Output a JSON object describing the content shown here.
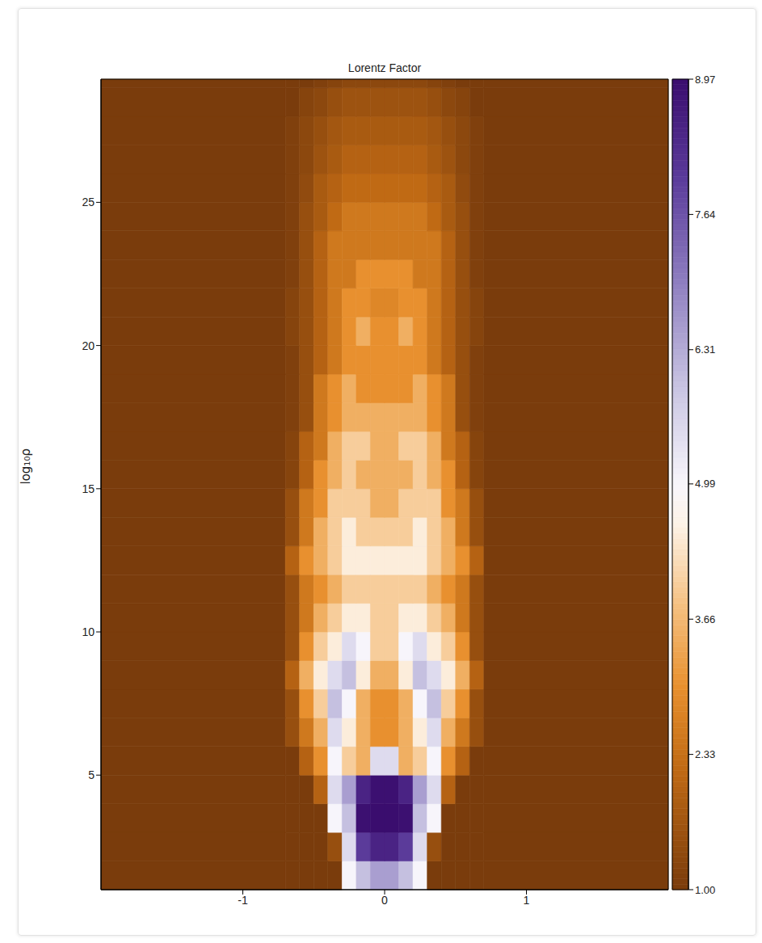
{
  "chart_data": {
    "type": "heatmap",
    "title": "Lorentz Factor",
    "ylabel": "log₁₀ρ",
    "xlim": [
      -2,
      2
    ],
    "xticks": [
      -1,
      0,
      1
    ],
    "ylim": [
      1,
      29.3
    ],
    "yticks": [
      5,
      10,
      15,
      20,
      25
    ],
    "heatmap": {
      "x_edges": [
        -2,
        -0.7,
        -0.6,
        -0.5,
        -0.4,
        -0.3,
        -0.2,
        -0.1,
        0,
        0.1,
        0.2,
        0.3,
        0.4,
        0.5,
        0.6,
        0.7,
        2
      ],
      "y_edges": [
        1,
        2,
        3,
        4,
        5,
        6,
        7,
        8,
        9,
        10,
        11,
        12,
        13,
        14,
        15,
        16,
        17,
        18,
        19,
        20,
        21,
        22,
        23,
        24,
        25,
        26,
        27,
        28,
        29,
        29.3
      ],
      "z": [
        [
          1,
          1,
          1,
          1,
          1,
          5,
          6,
          6.5,
          6.5,
          6,
          5,
          1,
          1,
          1,
          1,
          1
        ],
        [
          1,
          1,
          1,
          1,
          1.5,
          5.5,
          8,
          8.5,
          8.5,
          8,
          5.5,
          1.5,
          1,
          1,
          1,
          1
        ],
        [
          1,
          1,
          1,
          1,
          5,
          6,
          8.9,
          8.97,
          8.97,
          8.9,
          6,
          5,
          1,
          1,
          1,
          1
        ],
        [
          1,
          1,
          1,
          2,
          5.5,
          6.5,
          8.5,
          8.9,
          8.9,
          8.5,
          6.5,
          5.5,
          2,
          1,
          1,
          1
        ],
        [
          1,
          1,
          2,
          3,
          5,
          4,
          3.5,
          5.5,
          5.5,
          3.5,
          4,
          5,
          3,
          2,
          1,
          1
        ],
        [
          1,
          1.5,
          2.5,
          3.5,
          5.5,
          4.5,
          3.5,
          3,
          3,
          3.5,
          4.5,
          5.5,
          3.5,
          2.5,
          1.5,
          1
        ],
        [
          1,
          1.5,
          3,
          4,
          6,
          5,
          3.5,
          3,
          3,
          3.5,
          5,
          6,
          4,
          3,
          1.5,
          1
        ],
        [
          1,
          2,
          3.5,
          4.5,
          5.5,
          6,
          4.5,
          3.5,
          3.5,
          4.5,
          6,
          5.5,
          4.5,
          3.5,
          2,
          1
        ],
        [
          1,
          1.5,
          3,
          4,
          4.5,
          5.5,
          5,
          4,
          4,
          5,
          5.5,
          4.5,
          4,
          3,
          1.5,
          1
        ],
        [
          1,
          1.5,
          2.5,
          3.5,
          4,
          4.5,
          4.5,
          4,
          4,
          4.5,
          4.5,
          4,
          3.5,
          2.5,
          1.5,
          1
        ],
        [
          1,
          1.5,
          2.5,
          3,
          3.5,
          4,
          4,
          4,
          4,
          4,
          4,
          3.5,
          3,
          2.5,
          1.5,
          1
        ],
        [
          1,
          2,
          3,
          3.5,
          4,
          4.5,
          4.5,
          4.5,
          4.5,
          4.5,
          4.5,
          4,
          3.5,
          3,
          2,
          1
        ],
        [
          1,
          1.5,
          2.5,
          3.5,
          4,
          4.5,
          4,
          4,
          4,
          4,
          4.5,
          4,
          3.5,
          2.5,
          1.5,
          1
        ],
        [
          1,
          1.5,
          2.5,
          3,
          4,
          4,
          4,
          3.5,
          3.5,
          4,
          4,
          4,
          3,
          2.5,
          1.5,
          1
        ],
        [
          1,
          1.2,
          2,
          3,
          3.5,
          4,
          3.5,
          3.5,
          3.5,
          3.5,
          4,
          3.5,
          3,
          2,
          1.2,
          1
        ],
        [
          1,
          1.2,
          2,
          2.5,
          3.5,
          4,
          4,
          3.5,
          3.5,
          4,
          4,
          3.5,
          2.5,
          2,
          1.2,
          1
        ],
        [
          1,
          1.1,
          1.5,
          2.5,
          3,
          3.5,
          3.5,
          3.5,
          3.5,
          3.5,
          3.5,
          3,
          2.5,
          1.5,
          1.1,
          1
        ],
        [
          1,
          1.1,
          1.5,
          2.5,
          3,
          3.5,
          3,
          3,
          3,
          3,
          3.5,
          3,
          2.5,
          1.5,
          1.1,
          1
        ],
        [
          1,
          1.1,
          1.5,
          2,
          2.5,
          3,
          3,
          3,
          3,
          3,
          3,
          2.5,
          2,
          1.5,
          1.1,
          1
        ],
        [
          1,
          1.2,
          1.5,
          2,
          2.5,
          3,
          3.5,
          3,
          3,
          3.5,
          3,
          2.5,
          2,
          1.5,
          1.2,
          1
        ],
        [
          1,
          1.2,
          1.5,
          2,
          2.5,
          3,
          3,
          2.8,
          2.8,
          3,
          3,
          2.5,
          2,
          1.5,
          1.2,
          1
        ],
        [
          1,
          1.1,
          1.5,
          2,
          2.5,
          2.5,
          3,
          3,
          3,
          3,
          2.5,
          2.5,
          2,
          1.5,
          1.1,
          1
        ],
        [
          1,
          1.1,
          1.5,
          2,
          2.5,
          2.5,
          2.5,
          2.5,
          2.5,
          2.5,
          2.5,
          2.5,
          2,
          1.5,
          1.1,
          1
        ],
        [
          1,
          1.1,
          1.5,
          1.8,
          2.2,
          2.5,
          2.5,
          2.5,
          2.5,
          2.5,
          2.5,
          2.2,
          1.8,
          1.5,
          1.1,
          1
        ],
        [
          1,
          1.1,
          1.4,
          1.8,
          2,
          2.2,
          2.2,
          2.2,
          2.2,
          2.2,
          2.2,
          2,
          1.8,
          1.4,
          1.1,
          1
        ],
        [
          1,
          1.1,
          1.3,
          1.6,
          1.8,
          2,
          2,
          2,
          2,
          2,
          2,
          1.8,
          1.6,
          1.3,
          1.1,
          1
        ],
        [
          1,
          1.1,
          1.3,
          1.5,
          1.7,
          1.8,
          1.8,
          1.8,
          1.8,
          1.8,
          1.8,
          1.7,
          1.5,
          1.3,
          1.1,
          1
        ],
        [
          1,
          1,
          1.2,
          1.3,
          1.5,
          1.6,
          1.6,
          1.6,
          1.6,
          1.6,
          1.6,
          1.5,
          1.3,
          1.2,
          1,
          1
        ],
        [
          1,
          1,
          1,
          1.1,
          1.2,
          1.3,
          1.3,
          1.3,
          1.3,
          1.3,
          1.3,
          1.2,
          1.1,
          1,
          1,
          1
        ]
      ]
    },
    "colorbar": {
      "range": [
        1,
        8.97
      ],
      "ticks": [
        {
          "value": 1,
          "label": "1.00"
        },
        2.33,
        3.66,
        4.99,
        6.31,
        7.64,
        8.97
      ]
    }
  }
}
